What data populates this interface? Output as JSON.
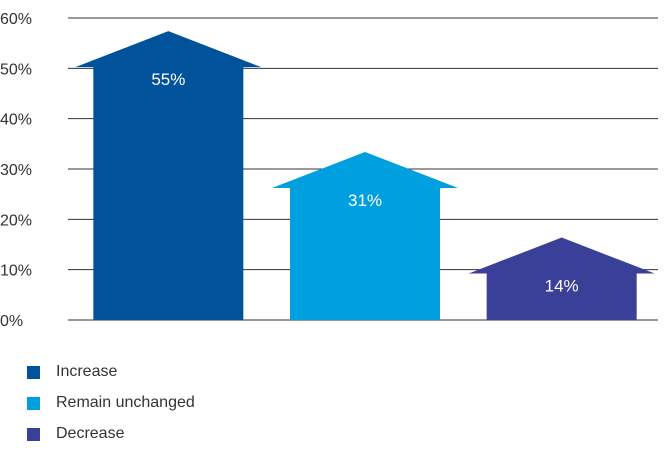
{
  "chart_data": {
    "type": "bar",
    "categories": [
      "Increase",
      "Remain unchanged",
      "Decrease"
    ],
    "values": [
      55,
      31,
      14
    ],
    "value_labels": [
      "55%",
      "31%",
      "14%"
    ],
    "ylim": [
      0,
      60
    ],
    "yticks": [
      {
        "value": 0,
        "label": "0%"
      },
      {
        "value": 10,
        "label": "10%"
      },
      {
        "value": 20,
        "label": "20%"
      },
      {
        "value": 30,
        "label": "30%"
      },
      {
        "value": 40,
        "label": "40%"
      },
      {
        "value": 50,
        "label": "50%"
      },
      {
        "value": 60,
        "label": "60%"
      }
    ],
    "colors": [
      "#00529b",
      "#009fdf",
      "#3a3f97"
    ],
    "grid": true,
    "legend_position": "bottom-left",
    "title": "",
    "xlabel": "",
    "ylabel": ""
  },
  "legend": [
    {
      "label": "Increase",
      "color": "#00529b"
    },
    {
      "label": "Remain unchanged",
      "color": "#009fdf"
    },
    {
      "label": "Decrease",
      "color": "#3a3f97"
    }
  ]
}
